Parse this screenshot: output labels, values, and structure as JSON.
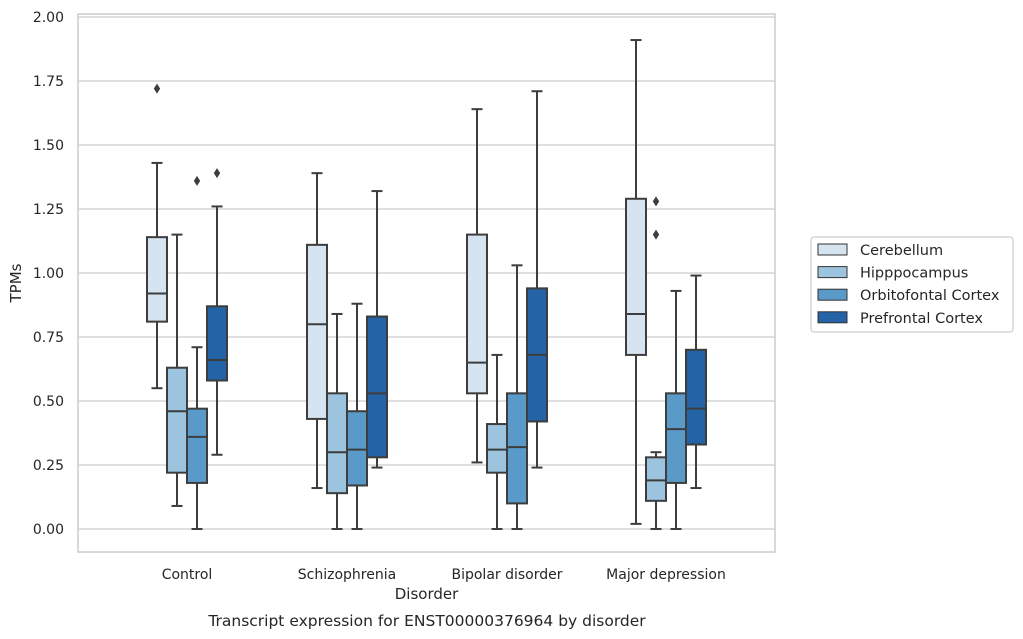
{
  "chart_data": {
    "type": "boxplot",
    "caption": "Transcript expression for ENST00000376964 by disorder",
    "xlabel": "Disorder",
    "ylabel": "TPMs",
    "ylim": [
      -0.09,
      2.01
    ],
    "yticks": [
      "0.00",
      "0.25",
      "0.50",
      "0.75",
      "1.00",
      "1.25",
      "1.50",
      "1.75",
      "2.00"
    ],
    "grid": true,
    "legend_position": "right",
    "categories": [
      "Control",
      "Schizophrenia",
      "Bipolar disorder",
      "Major depression"
    ],
    "series": [
      {
        "name": "Cerebellum",
        "color": "#d6e4f2",
        "boxes": [
          {
            "whislo": 0.55,
            "q1": 0.81,
            "med": 0.92,
            "q3": 1.14,
            "whishi": 1.43,
            "fliers": [
              1.72
            ]
          },
          {
            "whislo": 0.16,
            "q1": 0.43,
            "med": 0.8,
            "q3": 1.11,
            "whishi": 1.39,
            "fliers": []
          },
          {
            "whislo": 0.26,
            "q1": 0.53,
            "med": 0.65,
            "q3": 1.15,
            "whishi": 1.64,
            "fliers": []
          },
          {
            "whislo": 0.02,
            "q1": 0.68,
            "med": 0.84,
            "q3": 1.29,
            "whishi": 1.91,
            "fliers": []
          }
        ]
      },
      {
        "name": "Hipppocampus",
        "color": "#9dc4de",
        "boxes": [
          {
            "whislo": 0.09,
            "q1": 0.22,
            "med": 0.46,
            "q3": 0.63,
            "whishi": 1.15,
            "fliers": []
          },
          {
            "whislo": 0.0,
            "q1": 0.14,
            "med": 0.3,
            "q3": 0.53,
            "whishi": 0.84,
            "fliers": []
          },
          {
            "whislo": 0.0,
            "q1": 0.22,
            "med": 0.31,
            "q3": 0.41,
            "whishi": 0.68,
            "fliers": []
          },
          {
            "whislo": 0.0,
            "q1": 0.11,
            "med": 0.19,
            "q3": 0.28,
            "whishi": 0.3,
            "fliers": [
              1.15,
              1.28
            ]
          }
        ]
      },
      {
        "name": "Orbitofontal Cortex",
        "color": "#5a9ac9",
        "boxes": [
          {
            "whislo": 0.0,
            "q1": 0.18,
            "med": 0.36,
            "q3": 0.47,
            "whishi": 0.71,
            "fliers": [
              1.36
            ]
          },
          {
            "whislo": 0.0,
            "q1": 0.17,
            "med": 0.31,
            "q3": 0.46,
            "whishi": 0.88,
            "fliers": []
          },
          {
            "whislo": 0.0,
            "q1": 0.1,
            "med": 0.32,
            "q3": 0.53,
            "whishi": 1.03,
            "fliers": []
          },
          {
            "whislo": 0.0,
            "q1": 0.18,
            "med": 0.39,
            "q3": 0.53,
            "whishi": 0.93,
            "fliers": []
          }
        ]
      },
      {
        "name": "Prefrontal Cortex",
        "color": "#2463a6",
        "boxes": [
          {
            "whislo": 0.29,
            "q1": 0.58,
            "med": 0.66,
            "q3": 0.87,
            "whishi": 1.26,
            "fliers": [
              1.39
            ]
          },
          {
            "whislo": 0.24,
            "q1": 0.28,
            "med": 0.53,
            "q3": 0.83,
            "whishi": 1.32,
            "fliers": []
          },
          {
            "whislo": 0.24,
            "q1": 0.42,
            "med": 0.68,
            "q3": 0.94,
            "whishi": 1.71,
            "fliers": []
          },
          {
            "whislo": 0.16,
            "q1": 0.33,
            "med": 0.47,
            "q3": 0.7,
            "whishi": 0.99,
            "fliers": []
          }
        ]
      }
    ]
  }
}
